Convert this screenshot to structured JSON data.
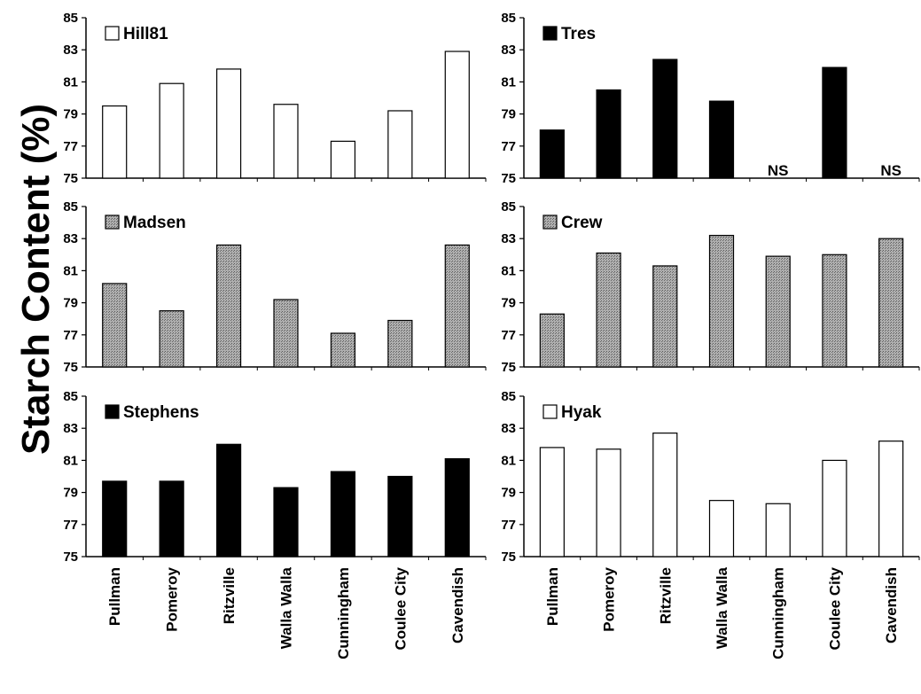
{
  "chart_data": {
    "type": "bar",
    "ylabel": "Starch Content (%)",
    "ylim": [
      75,
      85
    ],
    "yticks": [
      75,
      77,
      79,
      81,
      83,
      85
    ],
    "categories": [
      "Pullman",
      "Pomeroy",
      "Ritzville",
      "Walla Walla",
      "Cunningham",
      "Coulee City",
      "Cavendish"
    ],
    "na_label": "NS",
    "fills": {
      "white": "#ffffff",
      "black": "#000000",
      "gray": "#9a9a9a"
    },
    "panels": [
      {
        "name": "Hill81",
        "fill": "white",
        "values": [
          79.5,
          80.9,
          81.8,
          79.6,
          77.3,
          79.2,
          82.9
        ]
      },
      {
        "name": "Tres",
        "fill": "black",
        "values": [
          78.0,
          80.5,
          82.4,
          79.8,
          null,
          81.9,
          null
        ]
      },
      {
        "name": "Madsen",
        "fill": "gray",
        "values": [
          80.2,
          78.5,
          82.6,
          79.2,
          77.1,
          77.9,
          82.6
        ]
      },
      {
        "name": "Crew",
        "fill": "gray",
        "values": [
          78.3,
          82.1,
          81.3,
          83.2,
          81.9,
          82.0,
          83.0
        ]
      },
      {
        "name": "Stephens",
        "fill": "black",
        "values": [
          79.7,
          79.7,
          82.0,
          79.3,
          80.3,
          80.0,
          81.1
        ]
      },
      {
        "name": "Hyak",
        "fill": "white",
        "values": [
          81.8,
          81.7,
          82.7,
          78.5,
          78.3,
          81.0,
          82.2
        ]
      }
    ]
  }
}
